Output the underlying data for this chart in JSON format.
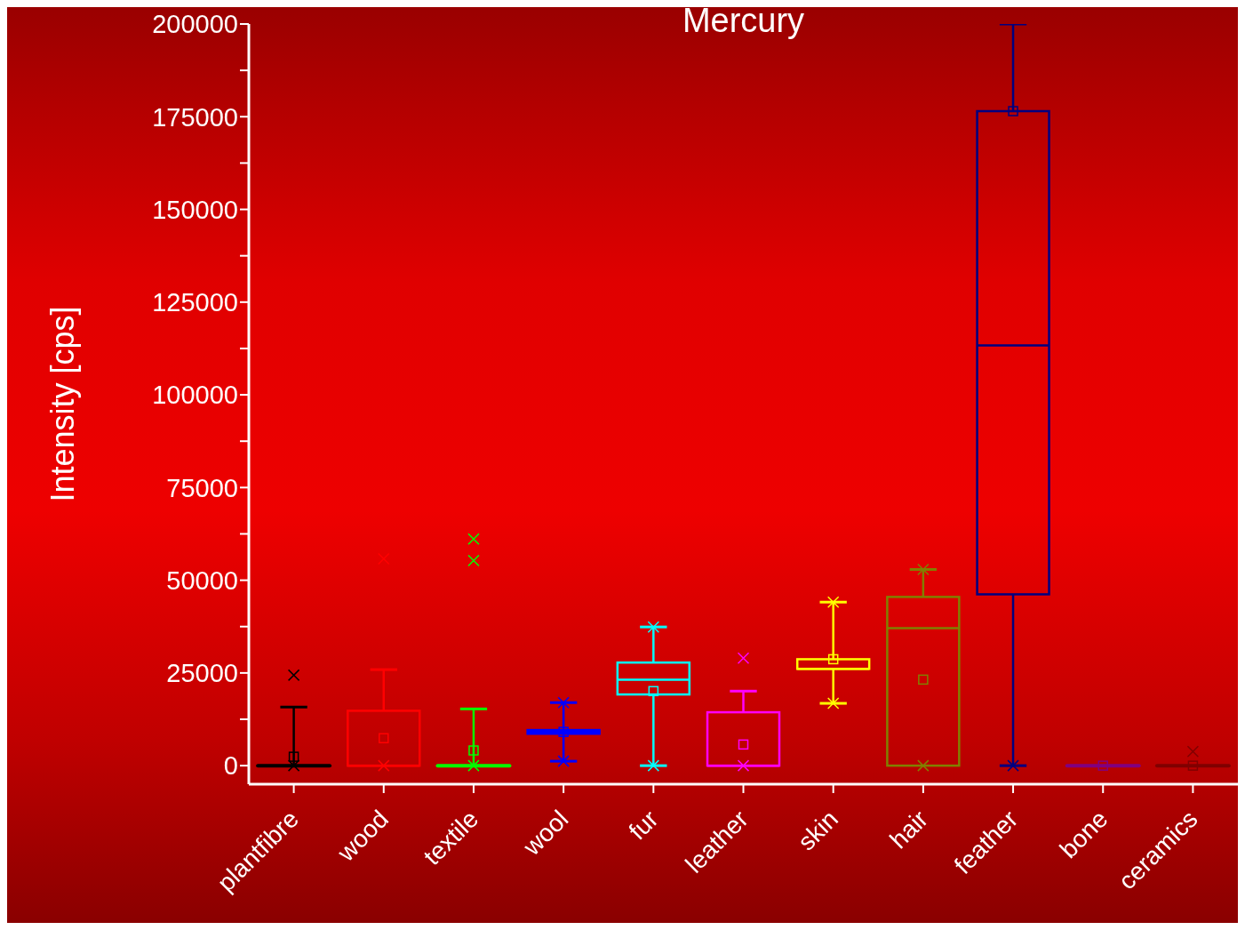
{
  "chart_data": {
    "type": "box",
    "title": "Mercury",
    "ylabel": "Intensity [cps]",
    "categories": [
      "plantfibre",
      "wood",
      "textile",
      "wool",
      "fur",
      "leather",
      "skin",
      "hair",
      "feather",
      "bone",
      "ceramics"
    ],
    "colors": [
      "#000000",
      "#ff0000",
      "#00ff00",
      "#0000ff",
      "#00ffff",
      "#ff00ff",
      "#ffff00",
      "#808000",
      "#000080",
      "#800080",
      "#800000"
    ],
    "boxes": [
      {
        "low": 0,
        "q1": 0,
        "median": 0,
        "q3": 0,
        "high": 15800,
        "mean": 2400,
        "outliers": [
          24400,
          0
        ]
      },
      {
        "low": 0,
        "q1": 0,
        "median": 0,
        "q3": 14800,
        "high": 25900,
        "mean": 7400,
        "outliers": [
          55800,
          0
        ]
      },
      {
        "low": 0,
        "q1": 0,
        "median": 0,
        "q3": 0,
        "high": 15300,
        "mean": 4100,
        "outliers": [
          55300,
          61100,
          0
        ]
      },
      {
        "low": 1200,
        "q1": 8600,
        "median": 9100,
        "q3": 9600,
        "high": 17000,
        "mean": 9100,
        "outliers": [
          17000,
          1200
        ]
      },
      {
        "low": 0,
        "q1": 19200,
        "median": 23200,
        "q3": 27800,
        "high": 37400,
        "mean": 20100,
        "outliers": [
          37400,
          0
        ]
      },
      {
        "low": 0,
        "q1": 0,
        "median": 0,
        "q3": 14400,
        "high": 20100,
        "mean": 5700,
        "outliers": [
          29000,
          0
        ]
      },
      {
        "low": 16800,
        "q1": 26100,
        "median": 26100,
        "q3": 28700,
        "high": 44100,
        "mean": 28700,
        "outliers": [
          44100,
          16800
        ]
      },
      {
        "low": 0,
        "q1": 0,
        "median": 37100,
        "q3": 45500,
        "high": 52900,
        "mean": 23200,
        "outliers": [
          52900,
          0
        ]
      },
      {
        "low": 0,
        "q1": 46200,
        "median": 113300,
        "q3": 176500,
        "high": 200000,
        "mean": 176500,
        "outliers": [
          0
        ]
      },
      {
        "low": 0,
        "q1": 0,
        "median": 0,
        "q3": 0,
        "high": 0,
        "mean": 0
      },
      {
        "low": 0,
        "q1": 0,
        "median": 0,
        "q3": 0,
        "high": 0,
        "mean": 0,
        "outliers": [
          3800
        ]
      }
    ],
    "ylim": [
      -5000,
      200000
    ],
    "yticks": [
      0,
      {
        "value": 12500,
        "label": null
      },
      25000,
      {
        "value": 37500,
        "label": null
      },
      50000,
      {
        "value": 62500,
        "label": null
      },
      75000,
      {
        "value": 87500,
        "label": null
      },
      100000,
      {
        "value": 112500,
        "label": null
      },
      125000,
      {
        "value": 137500,
        "label": null
      },
      150000,
      {
        "value": 162500,
        "label": null
      },
      175000,
      {
        "value": 187500,
        "label": null
      },
      200000
    ]
  }
}
